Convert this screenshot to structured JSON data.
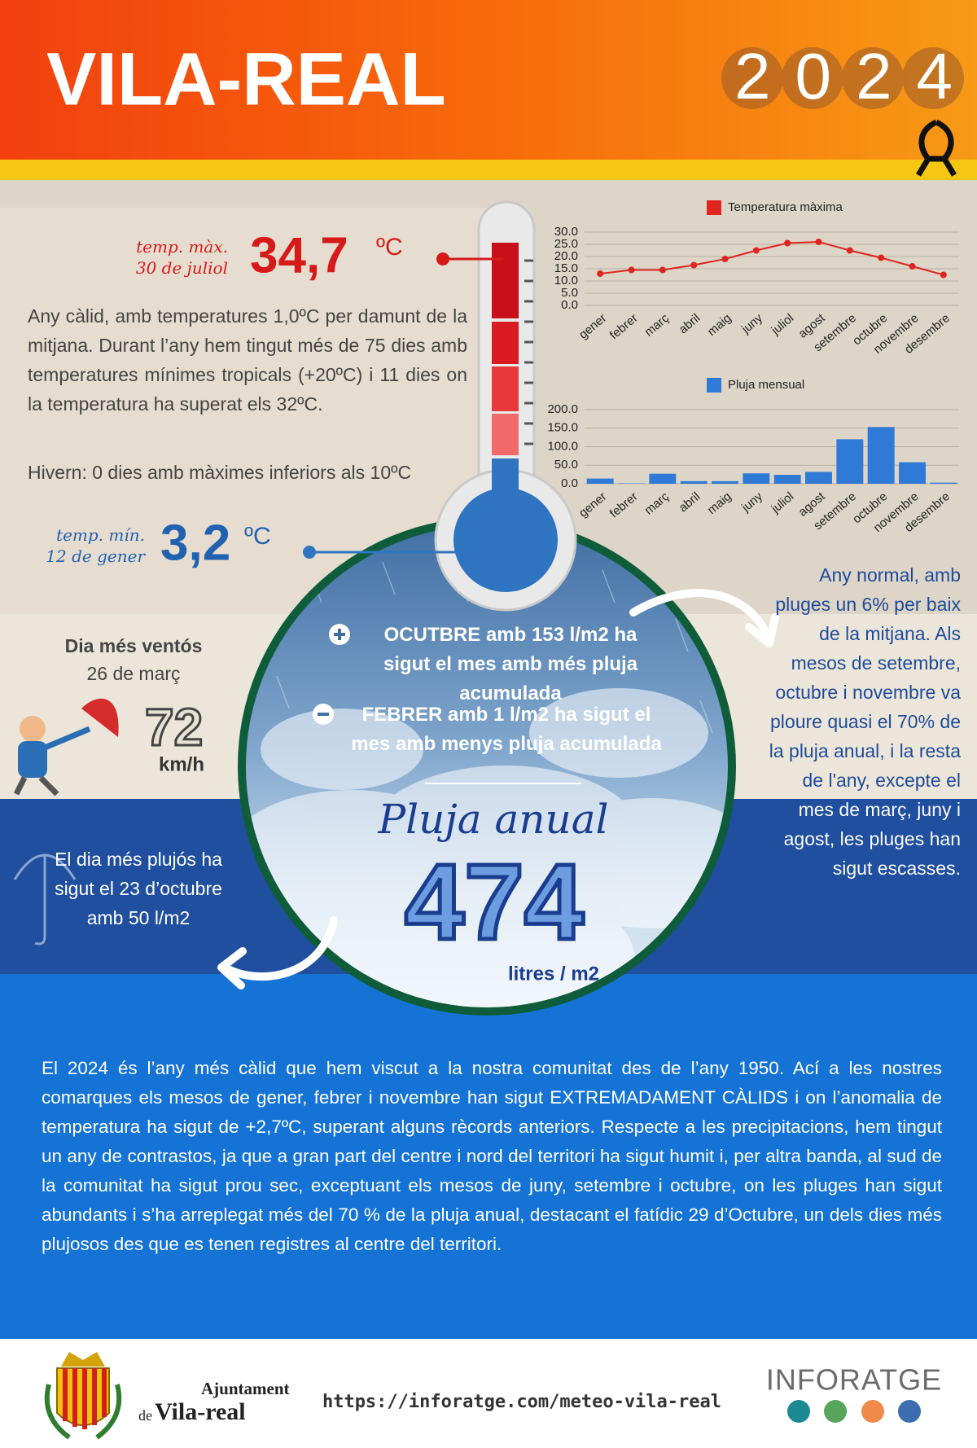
{
  "header": {
    "title": "VILA-REAL",
    "year": "2024"
  },
  "temperature": {
    "max_label": "temp. màx.",
    "max_date": "30 de juliol",
    "max_value": "34,7",
    "max_unit": "ºC",
    "min_label": "temp. mín.",
    "min_date": "12 de gener",
    "min_value": "3,2",
    "min_unit": "ºC",
    "text": "Any càlid, amb temperatures 1,0ºC per damunt de la mitjana. Durant l’any hem tingut més de 75 dies amb temperatures mínimes tropicals (+20ºC) i 11 dies on la temperatura ha superat els 32ºC.",
    "winter": "Hivern: 0 dies amb màximes inferiors als 10ºC"
  },
  "wind": {
    "title": "Dia més ventós",
    "date": "26 de març",
    "value": "72",
    "unit": "km/h"
  },
  "rain": {
    "max_month": "OCUTBRE amb 153 l/m2 ha sigut el mes amb més pluja acumulada",
    "min_month": "FEBRER amb 1 l/m2 ha sigut el mes amb menys pluja acumulada",
    "annual_label": "Pluja anual",
    "annual_value": "474",
    "annual_unit": "litres / m2",
    "wettest_day": "El dia més plujós ha sigut el 23 d’octubre amb 50 l/m2",
    "text": "Any normal, amb pluges un 6% per baix de la mitjana. Als mesos de setembre, octubre i novembre va ploure quasi el 70% de la pluja anual, i la resta de l'any, excepte el mes de març, juny i agost, les pluges han sigut escasses."
  },
  "summary": "El 2024 és l’any més càlid que hem viscut a la nostra comunitat des de l’any 1950. Ací a les nostres comarques els mesos de gener, febrer i novembre han sigut EXTREMADAMENT CÀLIDS i on l’anomalia de temperatura ha sigut de +2,7ºC, superant alguns rècords anteriors. Respecte a les precipitacions, hem tingut un any de contrastos, ja que a gran part del centre i nord del territori ha sigut humit i, per altra banda, al sud de la comunitat ha sigut prou sec, exceptuant els mesos de juny, setembre i octubre, on les pluges han sigut abundants i s’ha arreplegat més del 70 % de la pluja anual, destacant el fatídic 29 d’Octubre, un dels dies més plujosos des que es tenen registres al centre del territori.",
  "footer": {
    "org_line1": "Ajuntament",
    "org_prefix": "de",
    "org_line2": "Vila-real",
    "url": "https://inforatge.com/meteo-vila-real",
    "brand": "INFORATGE"
  },
  "chart_data": [
    {
      "type": "line",
      "categories": [
        "gener",
        "febrer",
        "març",
        "abril",
        "maig",
        "juny",
        "juliol",
        "agost",
        "setembre",
        "octubre",
        "novembre",
        "desembre"
      ],
      "series": [
        {
          "name": "Temperatura màxima",
          "color": "#e0251f",
          "values": [
            13,
            14.5,
            14.5,
            16.5,
            19,
            22.5,
            25.5,
            26,
            22.5,
            19.5,
            16,
            12.5
          ]
        }
      ],
      "ylim": [
        0,
        30
      ],
      "yticks": [
        {
          "value": 0,
          "label": "0.0"
        },
        {
          "value": 5,
          "label": "5.0"
        },
        {
          "value": 10,
          "label": "10.0"
        },
        {
          "value": 15,
          "label": "15.0"
        },
        {
          "value": 20,
          "label": "20.0"
        },
        {
          "value": 25,
          "label": "25.0"
        },
        {
          "value": 30,
          "label": "30.0"
        }
      ],
      "grid": true,
      "legend": "top"
    },
    {
      "type": "bar",
      "categories": [
        "gener",
        "febrer",
        "març",
        "abril",
        "maig",
        "juny",
        "juliol",
        "agost",
        "setembre",
        "octubre",
        "novembre",
        "desembre"
      ],
      "series": [
        {
          "name": "Pluja mensual",
          "color": "#2f7ad6",
          "values": [
            14,
            1,
            27,
            7,
            7,
            28,
            24,
            32,
            120,
            153,
            58,
            3
          ]
        }
      ],
      "ylim": [
        0,
        200
      ],
      "yticks": [
        {
          "value": 0,
          "label": "0.0"
        },
        {
          "value": 50,
          "label": "50.0"
        },
        {
          "value": 100,
          "label": "100.0"
        },
        {
          "value": 150,
          "label": "150.0"
        },
        {
          "value": 200,
          "label": "200.0"
        }
      ],
      "grid": true,
      "legend": "top"
    }
  ]
}
